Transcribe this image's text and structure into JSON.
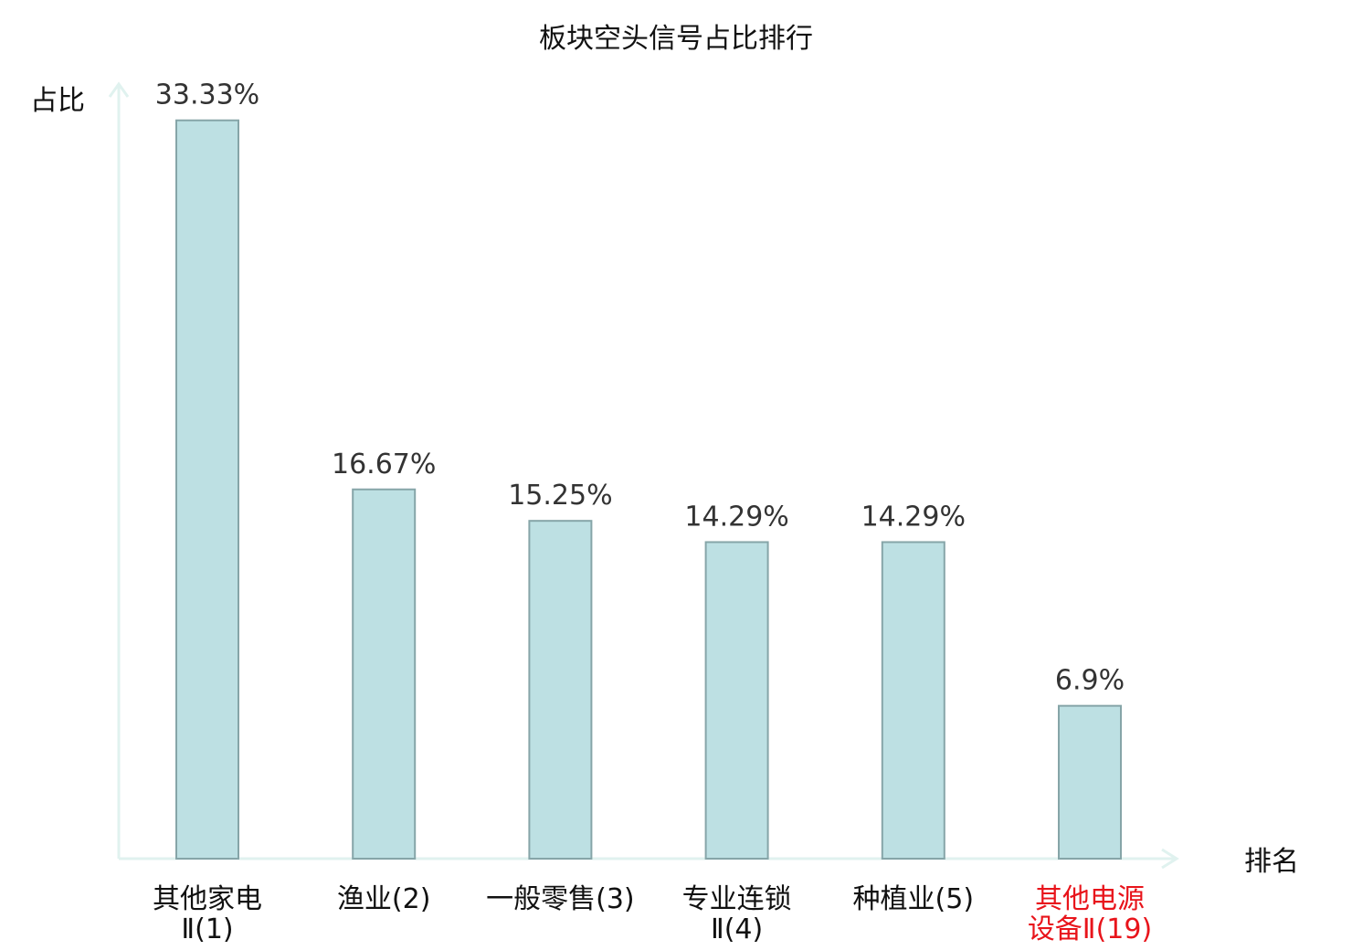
{
  "chart_data": {
    "type": "bar",
    "title": "板块空头信号占比排行",
    "ylabel": "占比",
    "xlabel": "排名",
    "ylim": [
      0,
      35
    ],
    "categories": [
      {
        "lines": [
          "其他家电",
          "Ⅱ(1)"
        ],
        "highlight": false
      },
      {
        "lines": [
          "渔业(2)"
        ],
        "highlight": false
      },
      {
        "lines": [
          "一般零售(3)"
        ],
        "highlight": false
      },
      {
        "lines": [
          "专业连锁",
          "Ⅱ(4)"
        ],
        "highlight": false
      },
      {
        "lines": [
          "种植业(5)"
        ],
        "highlight": false
      },
      {
        "lines": [
          "其他电源",
          "设备Ⅱ(19)"
        ],
        "highlight": true
      }
    ],
    "values": [
      33.33,
      16.67,
      15.25,
      14.29,
      14.29,
      6.9
    ],
    "data_labels": [
      "33.33%",
      "16.67%",
      "15.25%",
      "14.29%",
      "14.29%",
      "6.9%"
    ],
    "grid": false,
    "legend": "none"
  },
  "colors": {
    "bar_fill": "#bde0e3",
    "bar_stroke": "#86a5a8",
    "axis": "#e0f2ef",
    "highlight_label": "#e8141b"
  }
}
